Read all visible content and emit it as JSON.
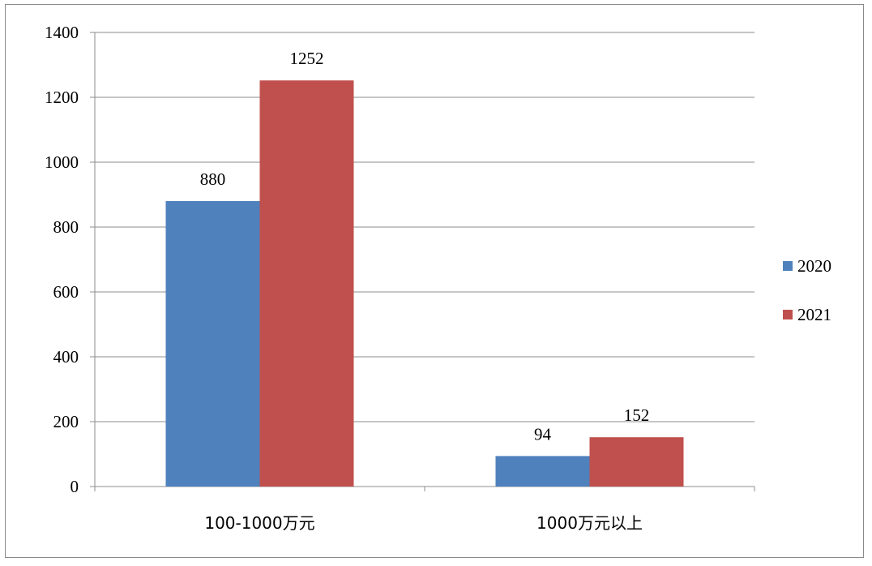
{
  "chart_data": {
    "type": "bar",
    "title": "",
    "xlabel": "",
    "ylabel": "",
    "categories": [
      "100-1000万元",
      "1000万元以上"
    ],
    "series": [
      {
        "name": "2020",
        "values": [
          880,
          94
        ],
        "color": "#4f81bd"
      },
      {
        "name": "2021",
        "values": [
          1252,
          152
        ],
        "color": "#c0504d"
      }
    ],
    "ylim": [
      0,
      1400
    ],
    "yticks": [
      0,
      200,
      400,
      600,
      800,
      1000,
      1200,
      1400
    ],
    "grid": true,
    "legend": "right"
  }
}
